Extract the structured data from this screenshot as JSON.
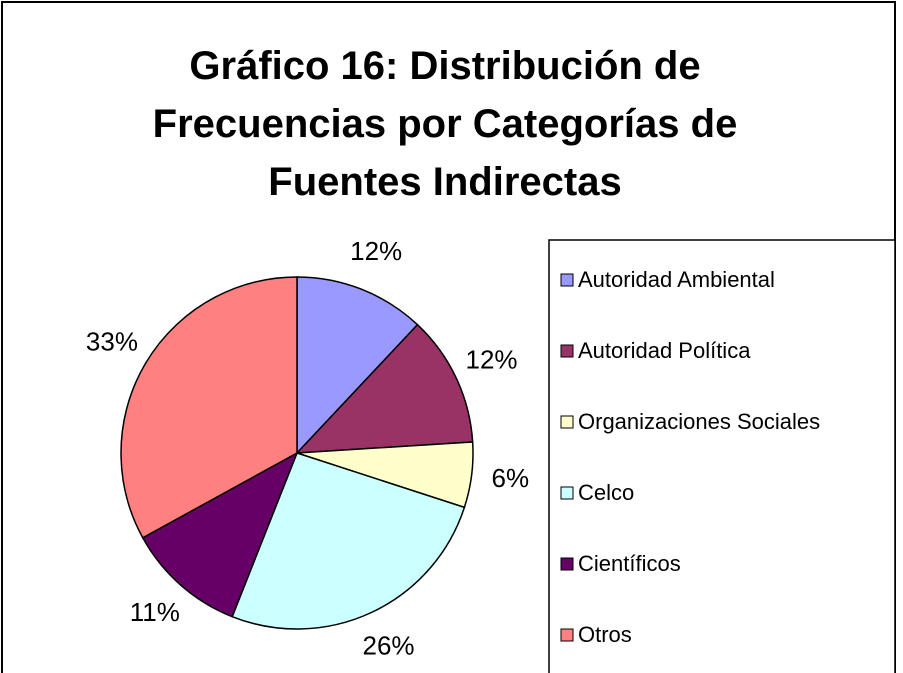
{
  "chart_data": {
    "type": "pie",
    "title": "Gráfico 16: Distribución de Frecuencias por Categorías de Fuentes Indirectas",
    "categories": [
      "Autoridad Ambiental",
      "Autoridad Política",
      "Organizaciones Sociales",
      "Celco",
      "Científicos",
      "Otros"
    ],
    "values": [
      12,
      12,
      6,
      26,
      11,
      33
    ],
    "value_labels": [
      "12%",
      "12%",
      "6%",
      "26%",
      "11%",
      "33%"
    ],
    "colors": [
      "#9999ff",
      "#993366",
      "#ffffcc",
      "#ccffff",
      "#660066",
      "#ff8080"
    ],
    "legend": "right"
  }
}
